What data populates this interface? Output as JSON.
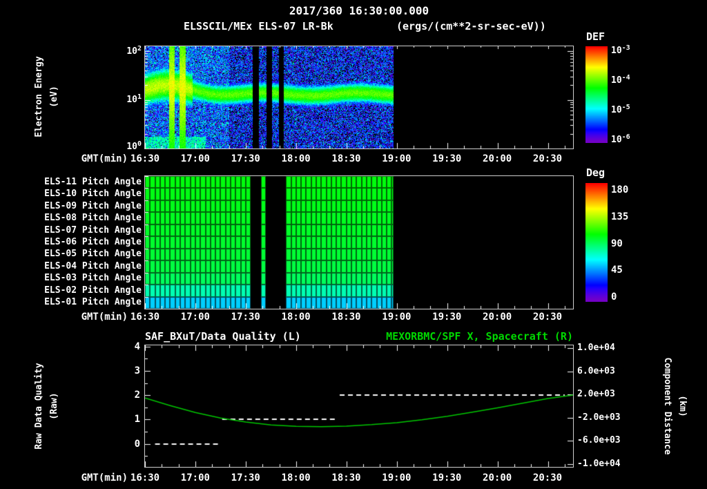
{
  "colors": {
    "background": "#000000",
    "text": "#ffffff",
    "series_green": "#00c800",
    "axis": "#ffffff"
  },
  "header": {
    "timestamp": "2017/360 16:30:00.000"
  },
  "axis": {
    "gmt_label": "GMT(min)",
    "time_ticks": [
      "16:30",
      "17:00",
      "17:30",
      "18:00",
      "18:30",
      "19:00",
      "19:30",
      "20:00",
      "20:30"
    ]
  },
  "panel1": {
    "title": "ELSSCIL/MEx ELS-07 LR-Bk",
    "units": "(ergs/(cm**2-sr-sec-eV))",
    "ylabel": "Electron Energy",
    "ylabel_units": "(eV)",
    "ytick_base": "10",
    "ytick_exponents": [
      "2",
      "1",
      "0"
    ],
    "colorbar": {
      "label": "DEF",
      "tick_base": "10",
      "tick_exponents": [
        "-3",
        "-4",
        "-5",
        "-6"
      ]
    }
  },
  "panel2": {
    "row_labels": [
      "ELS-11 Pitch Angle",
      "ELS-10 Pitch Angle",
      "ELS-09 Pitch Angle",
      "ELS-08 Pitch Angle",
      "ELS-07 Pitch Angle",
      "ELS-06 Pitch Angle",
      "ELS-05 Pitch Angle",
      "ELS-04 Pitch Angle",
      "ELS-03 Pitch Angle",
      "ELS-02 Pitch Angle",
      "ELS-01 Pitch Angle"
    ],
    "colorbar": {
      "label": "Deg",
      "ticks": [
        "180",
        "135",
        "90",
        "45",
        "0"
      ]
    }
  },
  "panel3": {
    "title_left": "SAF_BXuT/Data Quality (L)",
    "title_right": "MEXORBMC/SPF X, Spacecraft (R)",
    "ylabel_left": "Raw Data Quality",
    "ylabel_left_units": "(Raw)",
    "yticks_left": [
      "4",
      "3",
      "2",
      "1",
      "0"
    ],
    "ylabel_right": "Component Distance",
    "ylabel_right_units": "(km)",
    "yticks_right": [
      "1.0e+04",
      "6.0e+03",
      "2.0e+03",
      "-2.0e+03",
      "-6.0e+03",
      "-1.0e+04"
    ]
  },
  "chart_data": [
    {
      "type": "heatmap",
      "title": "ELSSCIL/MEx ELS-07 LR-Bk (ergs/(cm**2-sr-sec-eV))",
      "xlabel": "GMT(min)",
      "x_start": "16:30",
      "x_end": "20:45",
      "x_tick_labels": [
        "16:30",
        "17:00",
        "17:30",
        "18:00",
        "18:30",
        "19:00",
        "19:30",
        "20:00",
        "20:30"
      ],
      "ylabel": "Electron Energy (eV)",
      "y_scale": "log",
      "y_range_eV": [
        1,
        126
      ],
      "z_label": "DEF",
      "z_range": [
        1e-06,
        0.001
      ],
      "colorbar_ticks": [
        "1e-3",
        "1e-4",
        "1e-5",
        "1e-6"
      ],
      "coverage_min": [
        0,
        148
      ],
      "gaps_min": [
        [
          64,
          67.5
        ],
        [
          72,
          75.5
        ],
        [
          79.5,
          82.5
        ]
      ],
      "band_center_log10_eV": 1.12,
      "band_sigma_log10": 0.16,
      "band_peak_log10_flux": -4.2,
      "early_enhancement_min": [
        0,
        28
      ],
      "early_band_sigma_log10": 0.26,
      "early_band_peak_log10_flux": -3.95,
      "bright_streaks_min": [
        [
          14,
          17.5
        ],
        [
          20.5,
          24
        ]
      ],
      "background_log10_flux": -5.7,
      "low_energy_patch": {
        "t_range_min": [
          0,
          36
        ],
        "log10_eV_max": 0.25,
        "log10_flux": -4.5
      }
    },
    {
      "type": "heatmap",
      "title": "ELS Anode Pitch Angles",
      "xlabel": "GMT(min)",
      "x_tick_labels": [
        "16:30",
        "17:00",
        "17:30",
        "18:00",
        "18:30",
        "19:00",
        "19:30",
        "20:00",
        "20:30"
      ],
      "rows": [
        "ELS-11",
        "ELS-10",
        "ELS-09",
        "ELS-08",
        "ELS-07",
        "ELS-06",
        "ELS-05",
        "ELS-04",
        "ELS-03",
        "ELS-02",
        "ELS-01"
      ],
      "row_pitch_angle_deg": [
        101,
        100,
        99,
        98,
        97,
        96,
        95,
        93,
        89,
        76,
        57
      ],
      "z_label": "Deg",
      "z_range": [
        0,
        180
      ],
      "colorbar_ticks": [
        180,
        135,
        90,
        45,
        0
      ],
      "coverage_min": [
        0,
        148
      ],
      "gaps_min": [
        [
          64,
          67.5
        ],
        [
          72,
          75.5
        ],
        [
          79.5,
          82.5
        ]
      ],
      "grid_cell_minutes": 3
    },
    {
      "type": "line",
      "title": "SAF_BXuT/Data Quality (L) ; MEXORBMC/SPF X, Spacecraft (R)",
      "xlabel": "GMT(min)",
      "x_tick_labels": [
        "16:30",
        "17:00",
        "17:30",
        "18:00",
        "18:30",
        "19:00",
        "19:30",
        "20:00",
        "20:30"
      ],
      "left_axis": {
        "label": "Raw Data Quality (Raw)",
        "ticks": [
          4,
          3,
          2,
          1,
          0
        ],
        "range": [
          -0.95,
          4.05
        ]
      },
      "right_axis": {
        "label": "Component Distance (km)",
        "ticks": [
          10000,
          6000,
          2000,
          -2000,
          -6000,
          -10000
        ],
        "range": [
          -10500,
          10500
        ]
      },
      "series": [
        {
          "name": "SAF_BXuT/Data Quality",
          "axis": "left",
          "style": "dashed",
          "color": "#ffffff",
          "segments": [
            {
              "level": 0,
              "start_min": 6,
              "end_min": 45
            },
            {
              "level": 1,
              "start_min": 46,
              "end_min": 115
            },
            {
              "level": 2,
              "start_min": 116,
              "end_min": 250
            }
          ]
        },
        {
          "name": "MEXORBMC/SPF X, Spacecraft",
          "axis": "right",
          "style": "solid",
          "color": "#00c800",
          "x_min": [
            0,
            15,
            30,
            45,
            60,
            75,
            90,
            105,
            120,
            135,
            150,
            165,
            180,
            195,
            210,
            225,
            240,
            255
          ],
          "values_km": [
            1400,
            100,
            -1100,
            -2050,
            -2750,
            -3250,
            -3500,
            -3550,
            -3450,
            -3200,
            -2850,
            -2350,
            -1750,
            -1050,
            -300,
            500,
            1300,
            1900
          ]
        }
      ]
    }
  ]
}
